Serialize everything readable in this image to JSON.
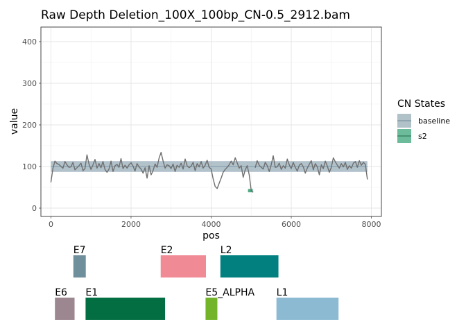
{
  "chart_data": {
    "type": "line",
    "title": "Raw Depth Deletion_100X_100bp_CN-0.5_2912.bam",
    "xlabel": "pos",
    "ylabel": "value",
    "xlim": [
      -250,
      8250
    ],
    "ylim": [
      -20,
      435
    ],
    "xticks": [
      0,
      2000,
      4000,
      6000,
      8000
    ],
    "yticks": [
      0,
      100,
      200,
      300,
      400
    ],
    "grid": true,
    "legend": {
      "title": "CN States",
      "position": "right",
      "entries": [
        {
          "label": "baseline",
          "color": "#8fa6b1"
        },
        {
          "label": "s2",
          "color": "#2e9e6f"
        }
      ]
    },
    "baseline_band": {
      "x": [
        0,
        7900
      ],
      "y": [
        87,
        113
      ],
      "level": 100,
      "color": "#9fb3be"
    },
    "s2_segment": {
      "x": [
        4920,
        5040
      ],
      "y": [
        38,
        46
      ],
      "color": "#2e9e6f"
    },
    "series": [
      {
        "color": "#6e6e6e",
        "segments": [
          {
            "x": [
              0,
              50,
              100,
              150,
              200,
              250,
              300,
              350,
              400,
              450,
              500,
              550,
              600,
              650,
              700,
              750,
              800,
              850,
              900,
              950,
              1000,
              1050,
              1100,
              1150,
              1200,
              1250,
              1300,
              1350,
              1400,
              1450,
              1500,
              1550,
              1600,
              1650,
              1700,
              1750,
              1800,
              1850,
              1900,
              1950,
              2000,
              2050,
              2100,
              2150,
              2200,
              2250,
              2300,
              2350,
              2400,
              2450,
              2500,
              2550,
              2600,
              2650,
              2700,
              2750,
              2800,
              2850,
              2900,
              2950,
              3000,
              3050,
              3100,
              3150,
              3200,
              3250,
              3300,
              3350,
              3400,
              3450,
              3500,
              3550,
              3600,
              3650,
              3700,
              3750,
              3800,
              3850,
              3900,
              3950,
              4000,
              4050,
              4100,
              4150,
              4200,
              4250,
              4300,
              4350,
              4400,
              4450,
              4500,
              4550,
              4600,
              4650,
              4700,
              4750,
              4800,
              4850,
              4900,
              4950,
              5000,
              5050
            ],
            "y": [
              62,
              95,
              113,
              107,
              105,
              100,
              96,
              112,
              104,
              98,
              99,
              110,
              92,
              97,
              102,
              108,
              90,
              95,
              128,
              106,
              93,
              104,
              117,
              96,
              107,
              97,
              112,
              93,
              86,
              94,
              113,
              88,
              102,
              105,
              98,
              119,
              95,
              103,
              96,
              104,
              109,
              101,
              89,
              107,
              99,
              94,
              84,
              97,
              72,
              102,
              80,
              90,
              106,
              98,
              120,
              134,
              113,
              96,
              104,
              102,
              95,
              106,
              88,
              103,
              98,
              108,
              94,
              118,
              102,
              97,
              101,
              110,
              90,
              107,
              99,
              112,
              96,
              103,
              115,
              98,
              94,
              70,
              52,
              47,
              60,
              72,
              86,
              93,
              98,
              104,
              113,
              104,
              121,
              109,
              96,
              102,
              74,
              92,
              102,
              80,
              42,
              38
            ]
          },
          {
            "x": [
              5100,
              5150,
              5200,
              5250,
              5300,
              5350,
              5400,
              5450,
              5500,
              5550,
              5600,
              5650,
              5700,
              5750,
              5800,
              5850,
              5900,
              5950,
              6000,
              6050,
              6100,
              6150,
              6200,
              6250,
              6300,
              6350,
              6400,
              6450,
              6500,
              6550,
              6600,
              6650,
              6700,
              6750,
              6800,
              6850,
              6900,
              6950,
              7000,
              7050,
              7100,
              7150,
              7200,
              7250,
              7300,
              7350,
              7400,
              7450,
              7500,
              7550,
              7600,
              7650,
              7700,
              7750,
              7800,
              7850,
              7900
            ],
            "y": [
              97,
              114,
              103,
              98,
              94,
              110,
              102,
              88,
              104,
              126,
              98,
              99,
              108,
              93,
              102,
              96,
              118,
              104,
              95,
              110,
              98,
              89,
              103,
              107,
              99,
              84,
              96,
              105,
              114,
              92,
              107,
              99,
              80,
              104,
              95,
              113,
              101,
              86,
              98,
              121,
              111,
              103,
              96,
              107,
              99,
              110,
              93,
              102,
              96,
              108,
              112,
              98,
              114,
              103,
              110,
              105,
              69
            ]
          }
        ]
      }
    ],
    "gene_tracks": {
      "row1": [
        {
          "name": "E7",
          "start": 560,
          "end": 870,
          "color": "#708f9d"
        },
        {
          "name": "E2",
          "start": 2740,
          "end": 3870,
          "color": "#f08a94"
        },
        {
          "name": "L2",
          "start": 4230,
          "end": 5680,
          "color": "#028080"
        }
      ],
      "row2": [
        {
          "name": "E6",
          "start": 100,
          "end": 590,
          "color": "#9c868f"
        },
        {
          "name": "E1",
          "start": 865,
          "end": 2850,
          "color": "#036e42"
        },
        {
          "name": "E5_ALPHA",
          "start": 3860,
          "end": 4155,
          "color": "#74b42b"
        },
        {
          "name": "L1",
          "start": 5630,
          "end": 7180,
          "color": "#8cbad3"
        }
      ]
    }
  }
}
